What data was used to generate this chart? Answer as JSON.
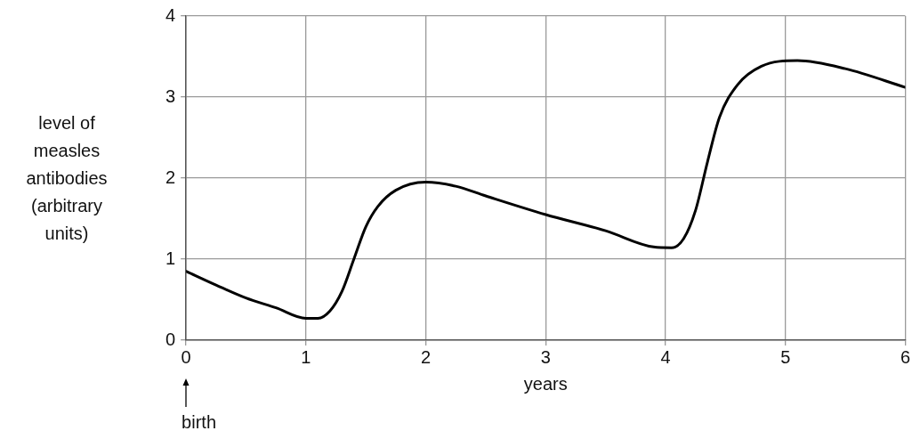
{
  "chart_data": {
    "type": "line",
    "xlabel": "years",
    "ylabel": "level of\nmeasles\nantibodies\n(arbitrary\nunits)",
    "x": [
      0,
      0.25,
      0.5,
      0.75,
      1,
      1.1,
      1.2,
      1.3,
      1.4,
      1.5,
      1.6,
      1.75,
      2,
      2.25,
      2.5,
      3,
      3.5,
      3.9,
      4.05,
      4.15,
      4.25,
      4.35,
      4.45,
      4.6,
      4.8,
      5.1,
      5.5,
      6
    ],
    "series": [
      {
        "color": "#000000",
        "values": [
          0.85,
          0.68,
          0.52,
          0.4,
          0.27,
          0.27,
          0.36,
          0.6,
          1.0,
          1.4,
          1.65,
          1.85,
          1.95,
          1.9,
          1.78,
          1.55,
          1.35,
          1.15,
          1.14,
          1.25,
          1.6,
          2.2,
          2.75,
          3.15,
          3.38,
          3.45,
          3.35,
          3.12
        ]
      }
    ],
    "xlim": [
      0,
      6
    ],
    "xticks": [
      0,
      1,
      2,
      3,
      4,
      5,
      6
    ],
    "ylim": [
      0,
      4
    ],
    "yticks": [
      0,
      1,
      2,
      3,
      4
    ],
    "grid": true,
    "legend": false,
    "marker": "none",
    "line_style": "solid",
    "annotations": [
      "birth"
    ]
  }
}
